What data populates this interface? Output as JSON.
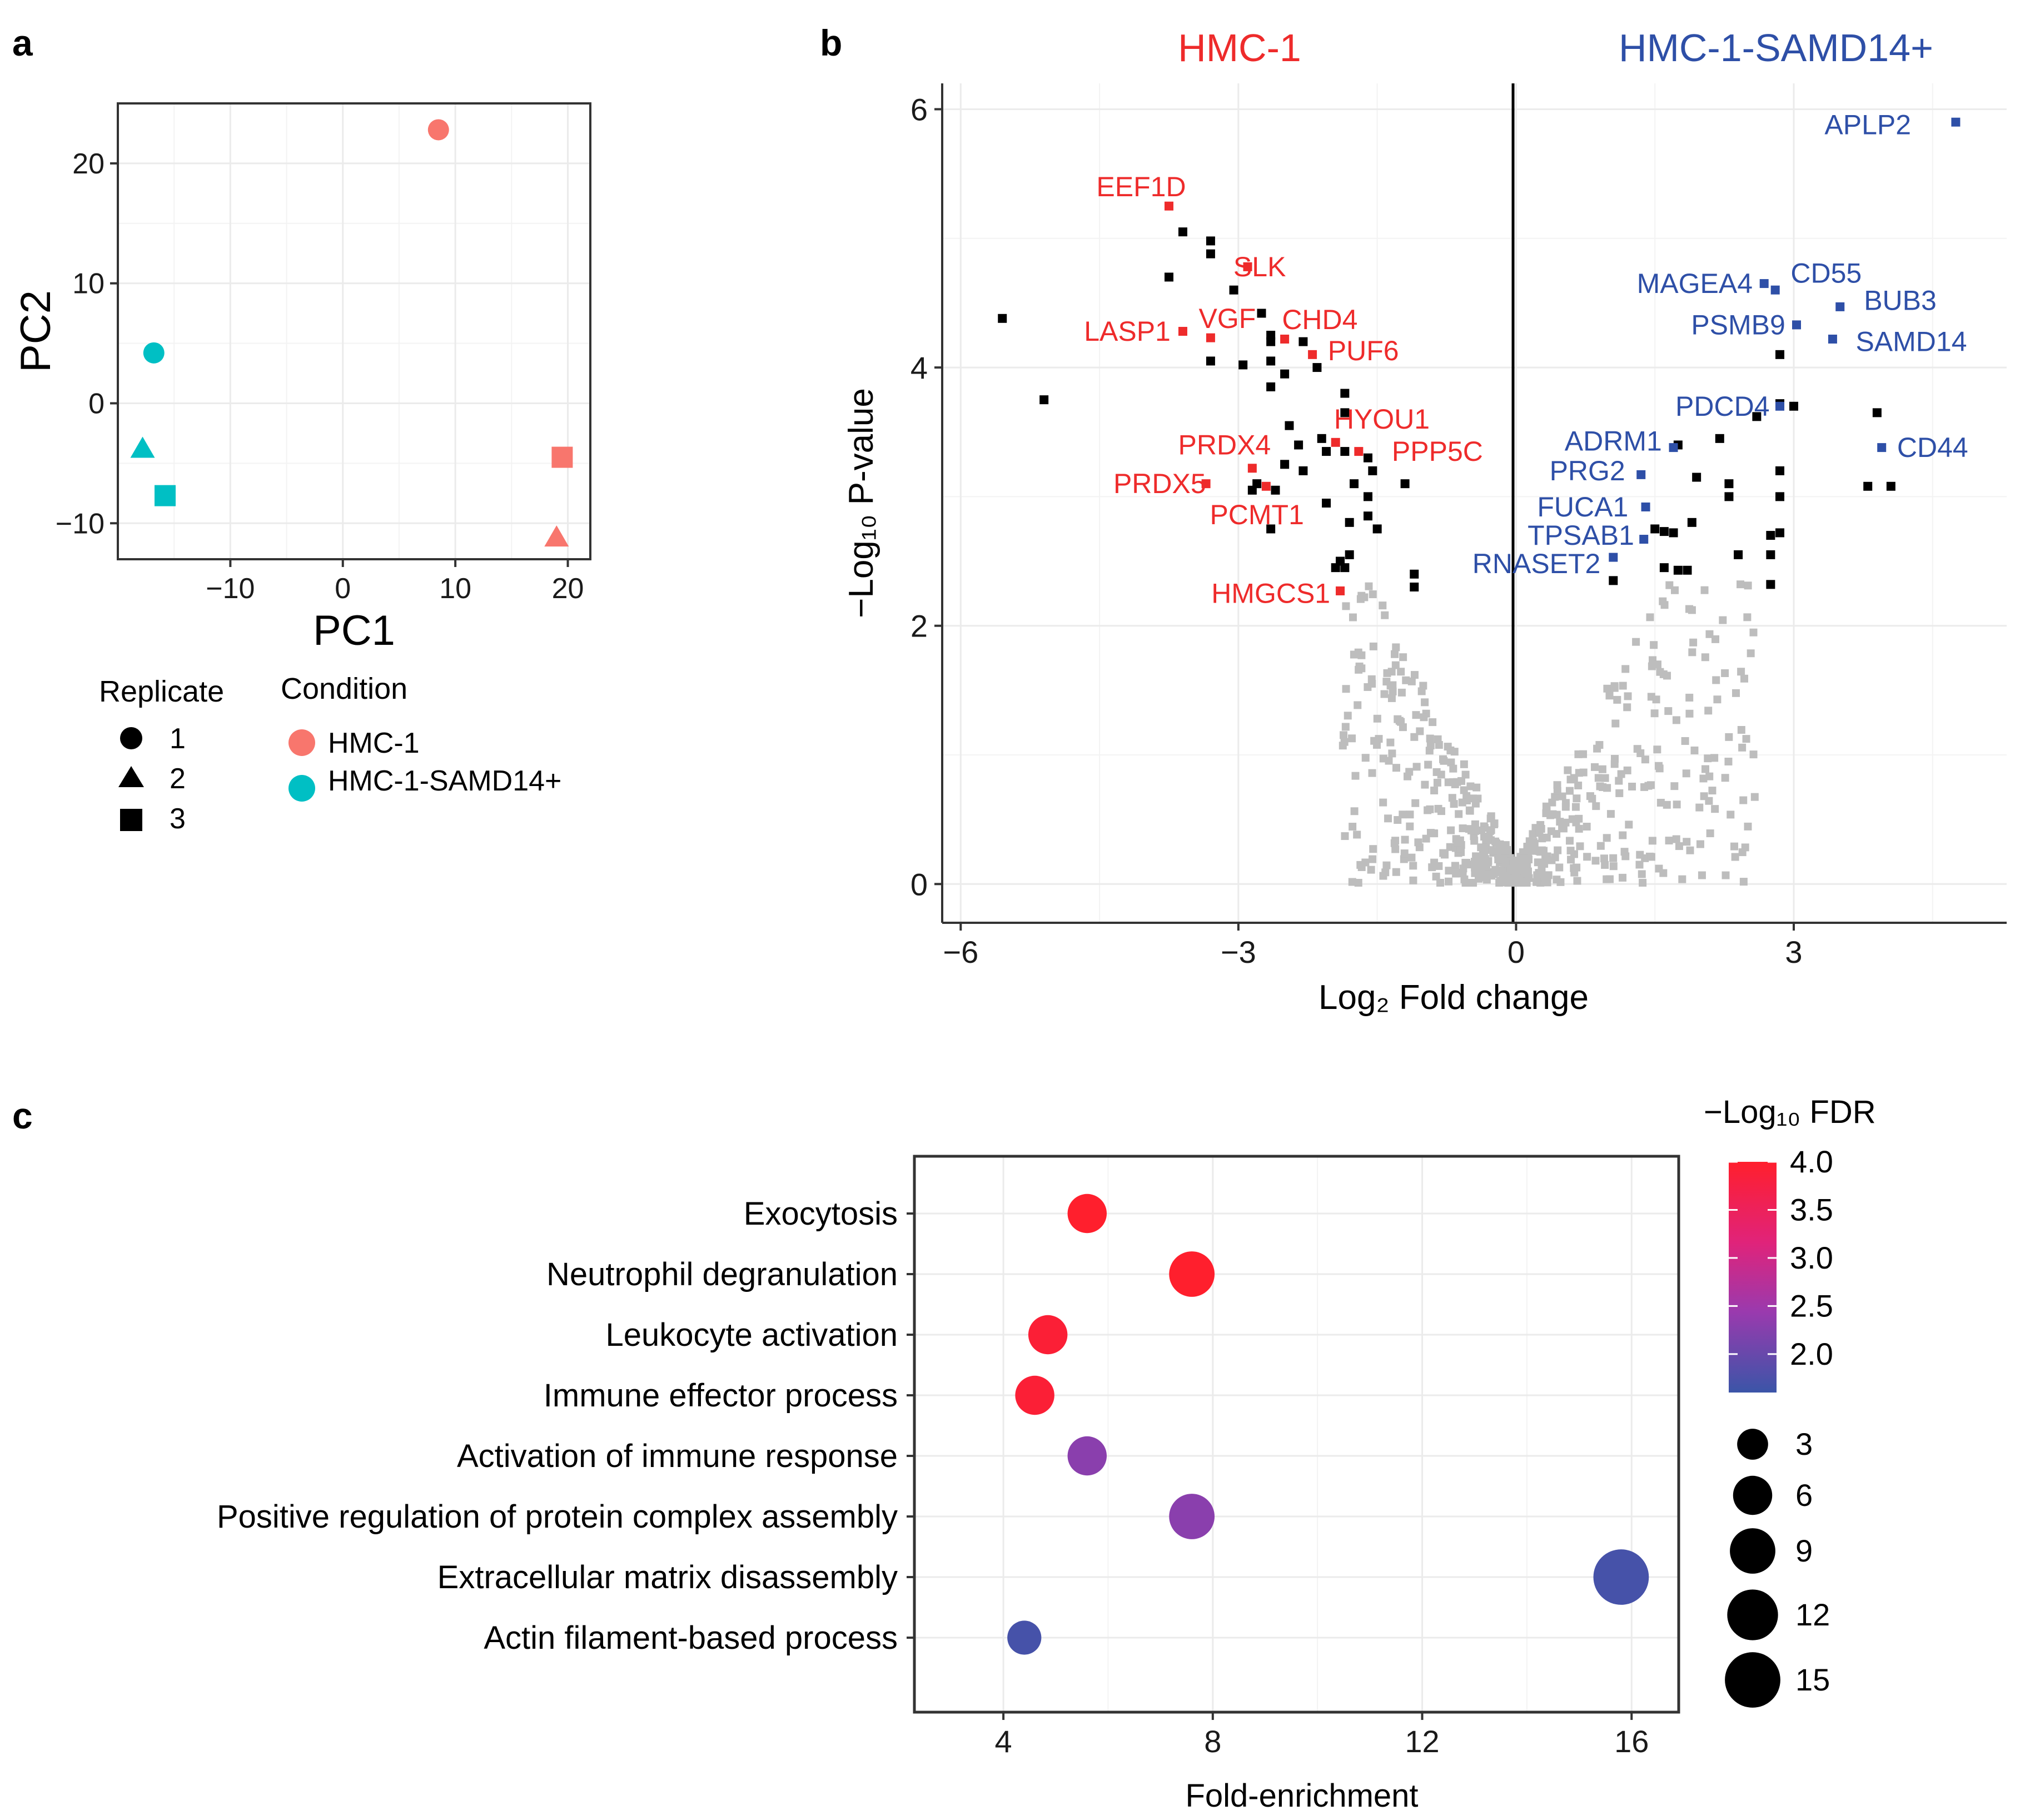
{
  "colors": {
    "hmc1": "#F8766D",
    "samd14": "#00BFC4",
    "volcano_down": "#EE2B2B",
    "volcano_up": "#2E4FA7",
    "volcano_sig": "#000000",
    "volcano_ns": "#BDBDBD",
    "fdr_low": "#3B55A8",
    "fdr_high": "#FF1F2D"
  },
  "panels": {
    "a": "a",
    "b": "b",
    "c": "c"
  },
  "chart_data": [
    {
      "id": "pca",
      "type": "scatter",
      "title": "",
      "xlabel": "PC1",
      "ylabel": "PC2",
      "xlim": [
        -20,
        22
      ],
      "ylim": [
        -13,
        25
      ],
      "xticks": [
        -10,
        0,
        10,
        20
      ],
      "xtick_labels": [
        "−10",
        "0",
        "10",
        "20"
      ],
      "yticks": [
        -10,
        0,
        10,
        20
      ],
      "ytick_labels": [
        "−10",
        "0",
        "10",
        "20"
      ],
      "points": [
        {
          "x": 8.5,
          "y": 22.8,
          "condition": "HMC-1",
          "replicate": 1
        },
        {
          "x": 19.5,
          "y": -4.5,
          "condition": "HMC-1",
          "replicate": 3
        },
        {
          "x": 19.0,
          "y": -11.2,
          "condition": "HMC-1",
          "replicate": 2
        },
        {
          "x": -16.8,
          "y": 4.2,
          "condition": "HMC-1-SAMD14+",
          "replicate": 1
        },
        {
          "x": -17.8,
          "y": -3.8,
          "condition": "HMC-1-SAMD14+",
          "replicate": 2
        },
        {
          "x": -15.8,
          "y": -7.7,
          "condition": "HMC-1-SAMD14+",
          "replicate": 3
        }
      ],
      "legend": {
        "replicate_title": "Replicate",
        "replicates": [
          {
            "label": "1",
            "shape": "circle"
          },
          {
            "label": "2",
            "shape": "triangle"
          },
          {
            "label": "3",
            "shape": "square"
          }
        ],
        "condition_title": "Condition",
        "conditions": [
          {
            "label": "HMC-1",
            "color": "#F8766D"
          },
          {
            "label": "HMC-1-SAMD14+",
            "color": "#00BFC4"
          }
        ]
      }
    },
    {
      "id": "volcano",
      "type": "scatter",
      "title": "",
      "xlabel": "Log₂ Fold change",
      "ylabel": "−Log₁₀ P-value",
      "header_left": "HMC-1",
      "header_right": "HMC-1-SAMD14+",
      "xlim": [
        -6.2,
        5.3
      ],
      "ylim": [
        -0.3,
        6.2
      ],
      "xticks": [
        -6,
        -3,
        0,
        3
      ],
      "xtick_labels": [
        "−6",
        "−3",
        "0",
        "3"
      ],
      "yticks": [
        0,
        2,
        4,
        6
      ],
      "ytick_labels": [
        "0",
        "2",
        "4",
        "6"
      ],
      "labeled_points": [
        {
          "label": "EEF1D",
          "x": -3.75,
          "y": 5.25,
          "group": "down",
          "label_dx": -0.3,
          "label_dy": 0.15
        },
        {
          "label": "SLK",
          "x": -2.9,
          "y": 4.78,
          "group": "down",
          "label_dx": 0.13,
          "label_dy": 0.0
        },
        {
          "label": "VGF",
          "x": -3.3,
          "y": 4.23,
          "group": "down",
          "label_dx": 0.18,
          "label_dy": 0.15
        },
        {
          "label": "CHD4",
          "x": -2.5,
          "y": 4.22,
          "group": "down",
          "label_dx": 0.38,
          "label_dy": 0.15
        },
        {
          "label": "LASP1",
          "x": -3.6,
          "y": 4.28,
          "group": "down",
          "label_dx": -0.6,
          "label_dy": 0.0
        },
        {
          "label": "PUF6",
          "x": -2.2,
          "y": 4.1,
          "group": "down",
          "label_dx": 0.55,
          "label_dy": 0.03
        },
        {
          "label": "HYOU1",
          "x": -1.95,
          "y": 3.42,
          "group": "down",
          "label_dx": 0.5,
          "label_dy": 0.18
        },
        {
          "label": "PRDX4",
          "x": -2.85,
          "y": 3.22,
          "group": "down",
          "label_dx": -0.3,
          "label_dy": 0.18
        },
        {
          "label": "PPP5C",
          "x": -1.7,
          "y": 3.35,
          "group": "down",
          "label_dx": 0.85,
          "label_dy": 0.0
        },
        {
          "label": "PRDX5",
          "x": -3.35,
          "y": 3.1,
          "group": "down",
          "label_dx": -0.5,
          "label_dy": 0.0
        },
        {
          "label": "PCMT1",
          "x": -2.7,
          "y": 3.08,
          "group": "down",
          "label_dx": -0.1,
          "label_dy": -0.22
        },
        {
          "label": "HMGCS1",
          "x": -1.9,
          "y": 2.27,
          "group": "down",
          "label_dx": -0.75,
          "label_dy": -0.02
        },
        {
          "label": "APLP2",
          "x": 4.75,
          "y": 5.9,
          "group": "up",
          "label_dx": -0.95,
          "label_dy": -0.02
        },
        {
          "label": "MAGEA4",
          "x": 2.68,
          "y": 4.65,
          "group": "up",
          "label_dx": -0.75,
          "label_dy": 0.0
        },
        {
          "label": "CD55",
          "x": 2.8,
          "y": 4.6,
          "group": "up",
          "label_dx": 0.55,
          "label_dy": 0.13
        },
        {
          "label": "BUB3",
          "x": 3.5,
          "y": 4.47,
          "group": "up",
          "label_dx": 0.65,
          "label_dy": 0.05
        },
        {
          "label": "PSMB9",
          "x": 3.03,
          "y": 4.33,
          "group": "up",
          "label_dx": -0.63,
          "label_dy": 0.0
        },
        {
          "label": "SAMD14",
          "x": 3.42,
          "y": 4.22,
          "group": "up",
          "label_dx": 0.85,
          "label_dy": -0.02
        },
        {
          "label": "PDCD4",
          "x": 2.85,
          "y": 3.7,
          "group": "up",
          "label_dx": -0.62,
          "label_dy": 0.0
        },
        {
          "label": "ADRM1",
          "x": 1.7,
          "y": 3.38,
          "group": "up",
          "label_dx": -0.65,
          "label_dy": 0.05
        },
        {
          "label": "CD44",
          "x": 3.95,
          "y": 3.38,
          "group": "up",
          "label_dx": 0.55,
          "label_dy": 0.0
        },
        {
          "label": "PRG2",
          "x": 1.35,
          "y": 3.17,
          "group": "up",
          "label_dx": -0.58,
          "label_dy": 0.03
        },
        {
          "label": "FUCA1",
          "x": 1.4,
          "y": 2.92,
          "group": "up",
          "label_dx": -0.68,
          "label_dy": 0.0
        },
        {
          "label": "TPSAB1",
          "x": 1.38,
          "y": 2.67,
          "group": "up",
          "label_dx": -0.68,
          "label_dy": 0.03
        },
        {
          "label": "RNASET2",
          "x": 1.05,
          "y": 2.53,
          "group": "up",
          "label_dx": -0.83,
          "label_dy": -0.05
        }
      ],
      "significant_points": [
        [
          -5.55,
          4.38
        ],
        [
          -5.1,
          3.75
        ],
        [
          -3.75,
          4.7
        ],
        [
          -3.6,
          5.05
        ],
        [
          -3.3,
          4.98
        ],
        [
          -3.3,
          4.88
        ],
        [
          -3.3,
          4.05
        ],
        [
          -3.05,
          4.6
        ],
        [
          -2.95,
          4.02
        ],
        [
          -2.75,
          4.42
        ],
        [
          -2.65,
          4.25
        ],
        [
          -2.65,
          4.2
        ],
        [
          -2.65,
          4.05
        ],
        [
          -2.65,
          3.85
        ],
        [
          -2.5,
          3.95
        ],
        [
          -2.3,
          4.2
        ],
        [
          -2.15,
          4.0
        ],
        [
          -1.85,
          3.8
        ],
        [
          -1.85,
          3.65
        ],
        [
          -2.45,
          3.55
        ],
        [
          -2.35,
          3.4
        ],
        [
          -2.1,
          3.45
        ],
        [
          -2.05,
          3.35
        ],
        [
          -1.85,
          3.35
        ],
        [
          -1.6,
          3.3
        ],
        [
          -1.55,
          3.2
        ],
        [
          -1.75,
          3.1
        ],
        [
          -2.5,
          3.25
        ],
        [
          -2.3,
          3.2
        ],
        [
          -2.85,
          3.05
        ],
        [
          -1.2,
          3.1
        ],
        [
          -1.6,
          3.0
        ],
        [
          -1.6,
          2.85
        ],
        [
          -1.8,
          2.8
        ],
        [
          -2.05,
          2.95
        ],
        [
          -2.8,
          3.1
        ],
        [
          -2.6,
          3.05
        ],
        [
          -2.65,
          2.75
        ],
        [
          -1.5,
          2.75
        ],
        [
          -1.8,
          2.55
        ],
        [
          -1.85,
          2.45
        ],
        [
          -1.9,
          2.5
        ],
        [
          -1.95,
          2.45
        ],
        [
          -1.1,
          2.3
        ],
        [
          -1.1,
          2.4
        ],
        [
          2.85,
          4.1
        ],
        [
          2.85,
          3.72
        ],
        [
          3.0,
          3.7
        ],
        [
          3.9,
          3.65
        ],
        [
          2.6,
          3.62
        ],
        [
          2.2,
          3.45
        ],
        [
          2.3,
          3.1
        ],
        [
          2.3,
          3.0
        ],
        [
          2.85,
          3.2
        ],
        [
          2.85,
          3.0
        ],
        [
          1.95,
          3.15
        ],
        [
          1.75,
          3.4
        ],
        [
          3.8,
          3.08
        ],
        [
          4.05,
          3.08
        ],
        [
          1.5,
          2.75
        ],
        [
          1.6,
          2.73
        ],
        [
          1.7,
          2.72
        ],
        [
          1.9,
          2.8
        ],
        [
          2.4,
          2.55
        ],
        [
          2.75,
          2.7
        ],
        [
          2.85,
          2.72
        ],
        [
          1.6,
          2.45
        ],
        [
          1.75,
          2.43
        ],
        [
          1.85,
          2.43
        ],
        [
          2.75,
          2.55
        ],
        [
          2.75,
          2.32
        ],
        [
          1.05,
          2.35
        ]
      ],
      "ns_seed": 7,
      "ns_count": 620
    },
    {
      "id": "go_enrichment",
      "type": "scatter",
      "title": "",
      "xlabel": "Fold-enrichment",
      "ylabel": "",
      "xlim": [
        2.3,
        16.9
      ],
      "xticks": [
        4,
        8,
        12,
        16
      ],
      "xtick_labels": [
        "4",
        "8",
        "12",
        "16"
      ],
      "categories": [
        "Exocytosis",
        "Neutrophil degranulation",
        "Leukocyte activation",
        "Immune effector process",
        "Activation of immune response",
        "Positive regulation of protein complex assembly",
        "Extracellular matrix disassembly",
        "Actin filament-based process"
      ],
      "fold_enrichment": [
        5.6,
        7.6,
        4.85,
        4.6,
        5.6,
        7.6,
        15.8,
        4.4
      ],
      "count": [
        6,
        9,
        6,
        6,
        6,
        9,
        15,
        4
      ],
      "neg_log10_fdr": [
        4.0,
        4.0,
        3.9,
        3.9,
        2.3,
        2.3,
        1.7,
        1.7
      ],
      "color_legend": {
        "title": "−Log₁₀ FDR",
        "range": [
          1.6,
          4.0
        ],
        "ticks": [
          4.0,
          3.5,
          3.0,
          2.5,
          2.0
        ],
        "tick_labels": [
          "4.0",
          "3.5",
          "3.0",
          "2.5",
          "2.0"
        ]
      },
      "size_legend": {
        "values": [
          3,
          6,
          9,
          12,
          15
        ],
        "labels": [
          "3",
          "6",
          "9",
          "12",
          "15"
        ]
      }
    }
  ]
}
